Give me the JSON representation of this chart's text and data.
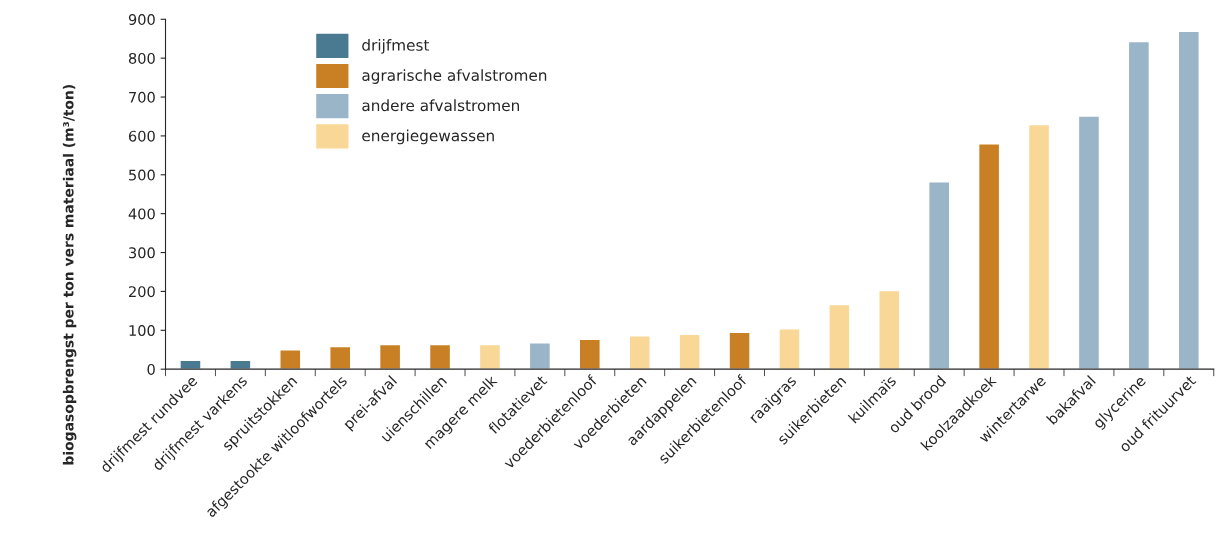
{
  "chart_data": {
    "type": "bar",
    "ylabel": "biogasopbrengst per ton vers materiaal (m³/ton)",
    "categories": [
      "drijfmest rundvee",
      "drijfmest varkens",
      "spruitstokken",
      "afgestookte witloofwortels",
      "prei-afval",
      "uienschillen",
      "magere melk",
      "flotatievet",
      "voederbietenloof",
      "voederbieten",
      "aardappelen",
      "suikerbietenloof",
      "raaigras",
      "suikerbieten",
      "kuilmaïs",
      "oud brood",
      "koolzaadkoek",
      "wintertarwe",
      "bakafval",
      "glycerine",
      "oud frituurvet"
    ],
    "series": [
      {
        "name": "drijfmest",
        "color": "#4a7a91",
        "values": [
          23,
          23,
          null,
          null,
          null,
          null,
          null,
          null,
          null,
          null,
          null,
          null,
          null,
          null,
          null,
          null,
          null,
          null,
          null,
          null,
          null
        ]
      },
      {
        "name": "agrarische afvalstromen",
        "color": "#c98025",
        "values": [
          null,
          null,
          50,
          58,
          63,
          63,
          null,
          null,
          77,
          null,
          null,
          95,
          null,
          null,
          null,
          null,
          580,
          null,
          null,
          null,
          null
        ]
      },
      {
        "name": "andere afvalstromen",
        "color": "#9ab5c8",
        "values": [
          null,
          null,
          null,
          null,
          null,
          null,
          null,
          68,
          null,
          null,
          null,
          null,
          null,
          null,
          null,
          482,
          null,
          null,
          651,
          843,
          869
        ]
      },
      {
        "name": "energiegewassen",
        "color": "#f9d796",
        "values": [
          null,
          null,
          null,
          null,
          null,
          null,
          63,
          null,
          null,
          86,
          90,
          null,
          104,
          166,
          202,
          null,
          null,
          629,
          null,
          null,
          null
        ]
      }
    ],
    "ylim": [
      0,
      900
    ],
    "yticks": [
      0,
      100,
      200,
      300,
      400,
      500,
      600,
      700,
      800,
      900
    ],
    "legend": "top left"
  }
}
